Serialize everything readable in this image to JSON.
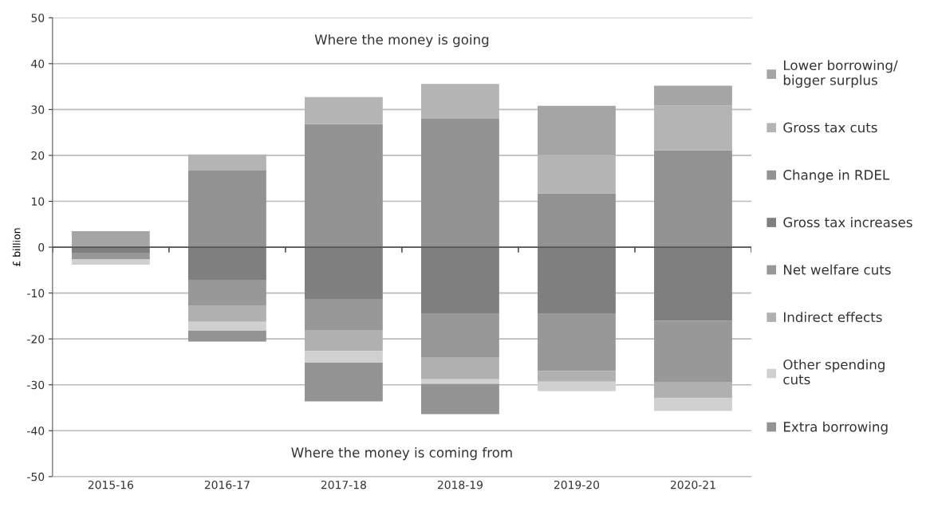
{
  "chart_data": {
    "type": "bar",
    "stacked": true,
    "ylabel": "£ billion",
    "categories": [
      "2015-16",
      "2016-17",
      "2017-18",
      "2018-19",
      "2019-20",
      "2020-21"
    ],
    "series": [
      {
        "name": "Change in RDEL",
        "color": "#929292",
        "values": [
          0,
          16.7,
          26.8,
          28.0,
          11.7,
          21.1
        ]
      },
      {
        "name": "Gross tax cuts",
        "color": "#b4b4b4",
        "values": [
          0,
          3.5,
          5.9,
          7.6,
          8.4,
          9.8
        ]
      },
      {
        "name": "Lower borrowing/\nbigger surplus",
        "color": "#a5a5a5",
        "values": [
          3.5,
          0,
          0,
          0,
          10.7,
          4.3
        ]
      },
      {
        "name": "Gross tax increases",
        "color": "#7f7f7f",
        "values": [
          -1.2,
          -7.1,
          -11.3,
          -14.4,
          -14.4,
          -16.0
        ]
      },
      {
        "name": "Net welfare cuts",
        "color": "#989898",
        "values": [
          -1.5,
          -5.7,
          -6.9,
          -9.7,
          -12.6,
          -13.5
        ]
      },
      {
        "name": "Indirect effects",
        "color": "#b0b0b0",
        "values": [
          0,
          -3.5,
          -4.4,
          -4.7,
          -2.3,
          -3.4
        ]
      },
      {
        "name": "Other spending\ncuts",
        "color": "#d0d0d0",
        "values": [
          -1.1,
          -1.9,
          -2.6,
          -1.0,
          -2.1,
          -2.8
        ]
      },
      {
        "name": "Extra borrowing",
        "color": "#939393",
        "values": [
          0,
          -2.4,
          -8.4,
          -6.6,
          0,
          0
        ]
      }
    ],
    "ylim": [
      -50,
      50
    ],
    "yticks": [
      -50,
      -40,
      -30,
      -20,
      -10,
      0,
      10,
      20,
      30,
      40,
      50
    ],
    "grid": "y",
    "legend": "right",
    "annotations": [
      "Where the money is going",
      "Where the money is coming from"
    ]
  }
}
